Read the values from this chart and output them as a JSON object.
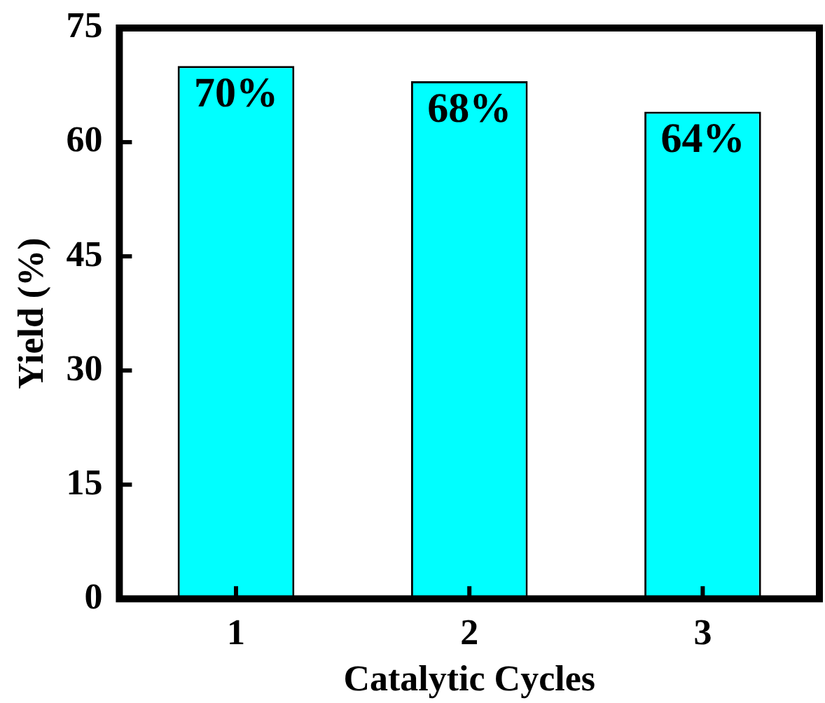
{
  "chart_data": {
    "type": "bar",
    "xlabel": "Catalytic Cycles",
    "ylabel": "Yield (%)",
    "categories": [
      "1",
      "2",
      "3"
    ],
    "values": [
      70,
      68,
      64
    ],
    "color": "#00ffff",
    "value_labels": [
      "70%",
      "68%",
      "64%"
    ],
    "ylim": [
      0,
      75
    ],
    "yticks": [
      0,
      15,
      30,
      45,
      60,
      75
    ]
  }
}
